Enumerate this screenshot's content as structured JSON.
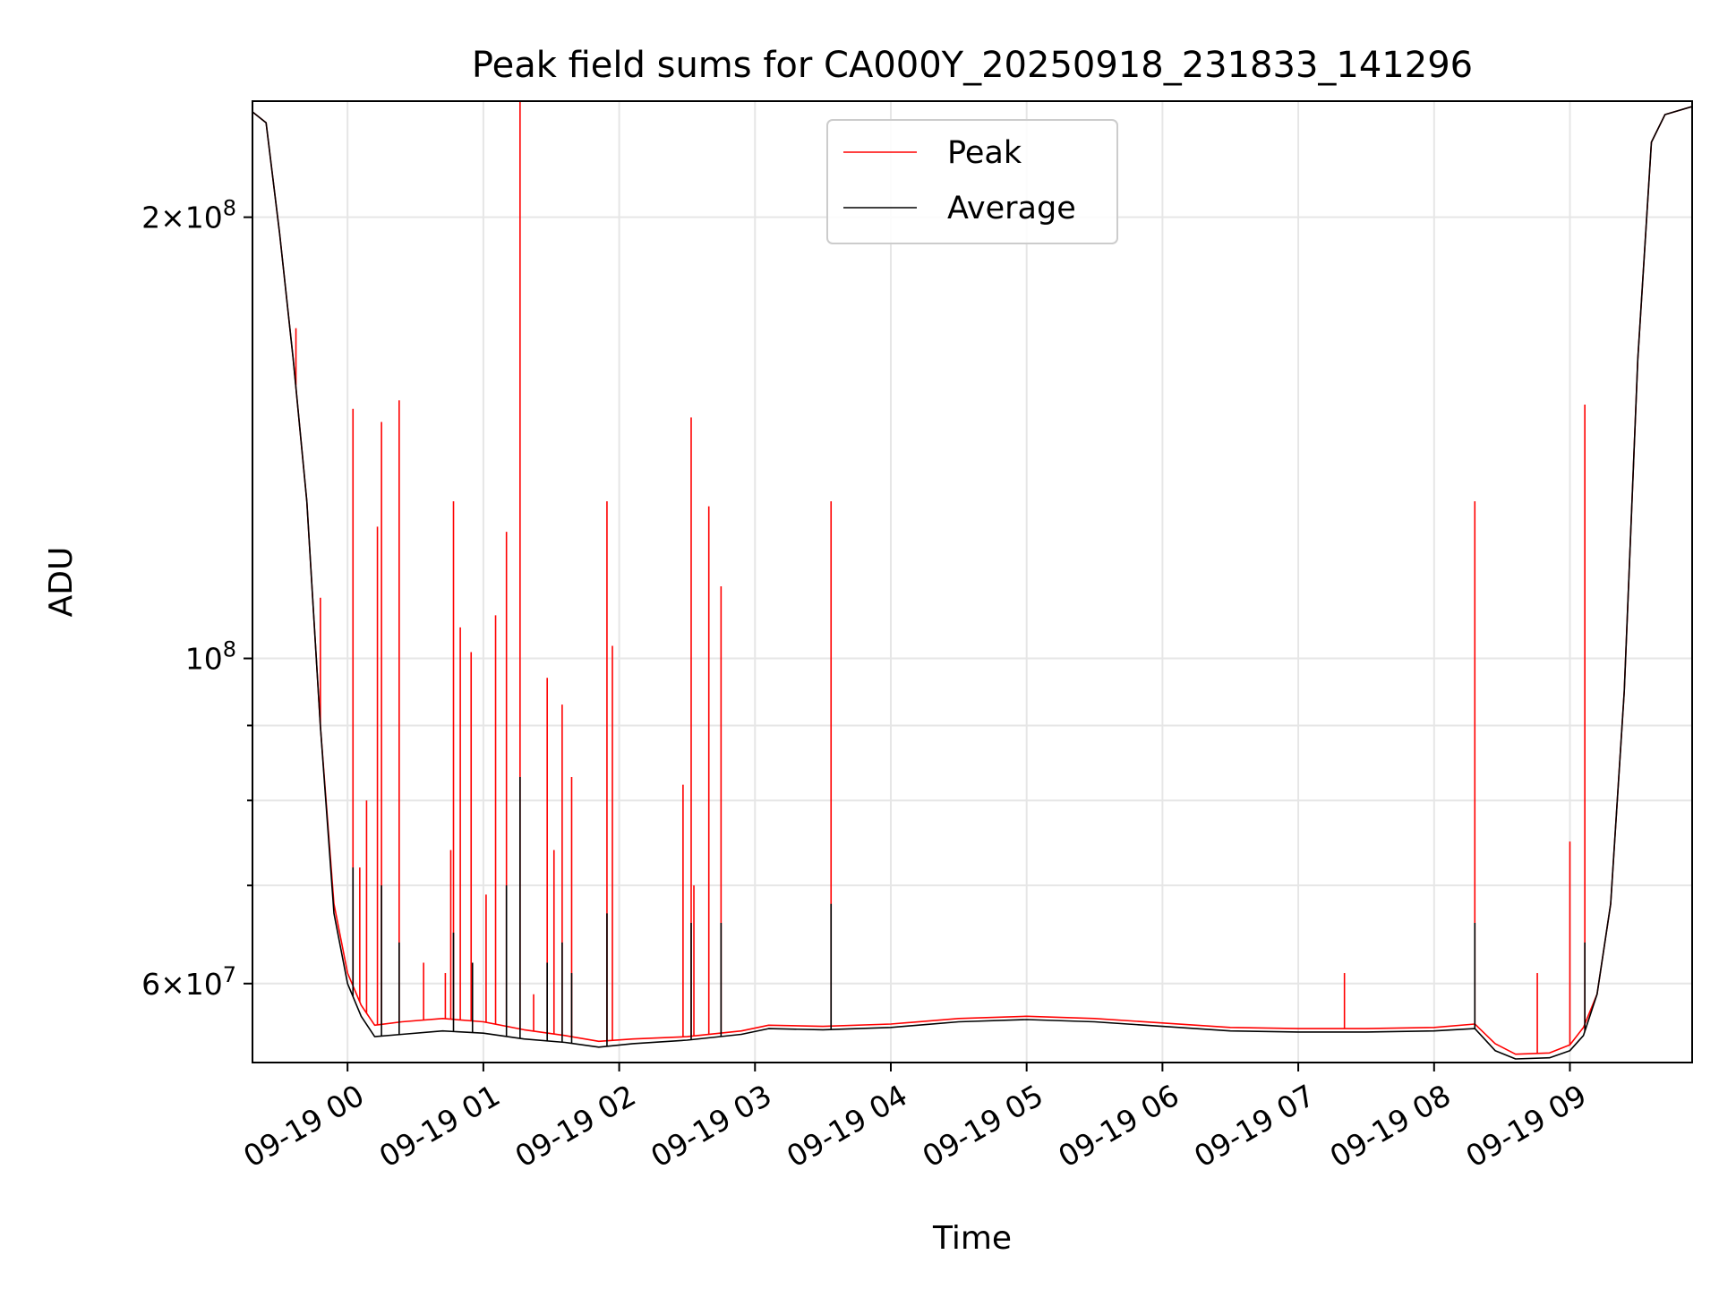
{
  "chart_data": {
    "type": "line",
    "title": "Peak field sums for CA000Y_20250918_231833_141296",
    "xlabel": "Time",
    "ylabel": "ADU",
    "y_scale": "log",
    "grid": true,
    "legend_position": "top-center",
    "xlim_hours": [
      -0.7,
      9.9
    ],
    "ylim": [
      53000000,
      240000000
    ],
    "x_unit": "hours since 2025-09-19 00:00",
    "x_ticks": [
      {
        "value": 0,
        "label": "09-19 00"
      },
      {
        "value": 1,
        "label": "09-19 01"
      },
      {
        "value": 2,
        "label": "09-19 02"
      },
      {
        "value": 3,
        "label": "09-19 03"
      },
      {
        "value": 4,
        "label": "09-19 04"
      },
      {
        "value": 5,
        "label": "09-19 05"
      },
      {
        "value": 6,
        "label": "09-19 06"
      },
      {
        "value": 7,
        "label": "09-19 07"
      },
      {
        "value": 8,
        "label": "09-19 08"
      },
      {
        "value": 9,
        "label": "09-19 09"
      }
    ],
    "y_major_ticks": [
      {
        "value": 60000000,
        "mantissa": "6",
        "exponent": "7"
      },
      {
        "value": 100000000,
        "mantissa": "",
        "exponent": "8"
      },
      {
        "value": 200000000,
        "mantissa": "2",
        "exponent": "8"
      }
    ],
    "y_minor_ticks": [
      70000000,
      80000000,
      90000000
    ],
    "series": [
      {
        "name": "Peak",
        "color": "#ff0000",
        "baseline": [
          [
            -0.7,
            236000000
          ],
          [
            -0.6,
            232000000
          ],
          [
            -0.5,
            195000000
          ],
          [
            -0.4,
            160000000
          ],
          [
            -0.3,
            128000000
          ],
          [
            -0.2,
            90000000
          ],
          [
            -0.1,
            68000000
          ],
          [
            0.0,
            61000000
          ],
          [
            0.1,
            58000000
          ],
          [
            0.2,
            56200000
          ],
          [
            0.4,
            56500000
          ],
          [
            0.7,
            56800000
          ],
          [
            1.0,
            56500000
          ],
          [
            1.3,
            55800000
          ],
          [
            1.6,
            55300000
          ],
          [
            1.85,
            54800000
          ],
          [
            2.1,
            55000000
          ],
          [
            2.5,
            55200000
          ],
          [
            2.9,
            55700000
          ],
          [
            3.1,
            56200000
          ],
          [
            3.5,
            56100000
          ],
          [
            4.0,
            56300000
          ],
          [
            4.5,
            56800000
          ],
          [
            5.0,
            57000000
          ],
          [
            5.5,
            56800000
          ],
          [
            6.0,
            56400000
          ],
          [
            6.5,
            56000000
          ],
          [
            7.0,
            55900000
          ],
          [
            7.5,
            55900000
          ],
          [
            8.0,
            56000000
          ],
          [
            8.3,
            56300000
          ],
          [
            8.45,
            54600000
          ],
          [
            8.6,
            53700000
          ],
          [
            8.85,
            53800000
          ],
          [
            9.0,
            54500000
          ],
          [
            9.1,
            56000000
          ],
          [
            9.2,
            59000000
          ],
          [
            9.3,
            68000000
          ],
          [
            9.4,
            95000000
          ],
          [
            9.5,
            160000000
          ],
          [
            9.6,
            225000000
          ],
          [
            9.7,
            235000000
          ],
          [
            9.9,
            238000000
          ]
        ],
        "spikes": [
          [
            -0.38,
            168000000
          ],
          [
            -0.2,
            110000000
          ],
          [
            0.04,
            148000000
          ],
          [
            0.09,
            72000000
          ],
          [
            0.14,
            80000000
          ],
          [
            0.22,
            123000000
          ],
          [
            0.25,
            145000000
          ],
          [
            0.38,
            150000000
          ],
          [
            0.56,
            62000000
          ],
          [
            0.72,
            61000000
          ],
          [
            0.76,
            74000000
          ],
          [
            0.78,
            128000000
          ],
          [
            0.83,
            105000000
          ],
          [
            0.91,
            101000000
          ],
          [
            1.02,
            69000000
          ],
          [
            1.09,
            107000000
          ],
          [
            1.17,
            122000000
          ],
          [
            1.27,
            240000000
          ],
          [
            1.37,
            59000000
          ],
          [
            1.47,
            97000000
          ],
          [
            1.52,
            74000000
          ],
          [
            1.58,
            93000000
          ],
          [
            1.65,
            83000000
          ],
          [
            1.91,
            128000000
          ],
          [
            1.95,
            102000000
          ],
          [
            2.47,
            82000000
          ],
          [
            2.53,
            146000000
          ],
          [
            2.55,
            70000000
          ],
          [
            2.66,
            127000000
          ],
          [
            2.75,
            112000000
          ],
          [
            3.56,
            128000000
          ],
          [
            7.34,
            61000000
          ],
          [
            8.3,
            128000000
          ],
          [
            8.76,
            61000000
          ],
          [
            9.0,
            75000000
          ],
          [
            9.11,
            149000000
          ]
        ]
      },
      {
        "name": "Average",
        "color": "#000000",
        "baseline": [
          [
            -0.7,
            236000000
          ],
          [
            -0.6,
            232000000
          ],
          [
            -0.5,
            195000000
          ],
          [
            -0.4,
            160000000
          ],
          [
            -0.3,
            128000000
          ],
          [
            -0.2,
            90000000
          ],
          [
            -0.1,
            67000000
          ],
          [
            0.0,
            60000000
          ],
          [
            0.1,
            57000000
          ],
          [
            0.2,
            55200000
          ],
          [
            0.4,
            55400000
          ],
          [
            0.7,
            55700000
          ],
          [
            1.0,
            55500000
          ],
          [
            1.3,
            55000000
          ],
          [
            1.6,
            54700000
          ],
          [
            1.85,
            54300000
          ],
          [
            2.1,
            54600000
          ],
          [
            2.5,
            54900000
          ],
          [
            2.9,
            55400000
          ],
          [
            3.1,
            55900000
          ],
          [
            3.5,
            55800000
          ],
          [
            4.0,
            56000000
          ],
          [
            4.5,
            56500000
          ],
          [
            5.0,
            56700000
          ],
          [
            5.5,
            56500000
          ],
          [
            6.0,
            56100000
          ],
          [
            6.5,
            55700000
          ],
          [
            7.0,
            55600000
          ],
          [
            7.5,
            55600000
          ],
          [
            8.0,
            55700000
          ],
          [
            8.3,
            55900000
          ],
          [
            8.45,
            54000000
          ],
          [
            8.6,
            53300000
          ],
          [
            8.85,
            53400000
          ],
          [
            9.0,
            54000000
          ],
          [
            9.1,
            55300000
          ],
          [
            9.2,
            59000000
          ],
          [
            9.3,
            68000000
          ],
          [
            9.4,
            95000000
          ],
          [
            9.5,
            160000000
          ],
          [
            9.6,
            225000000
          ],
          [
            9.7,
            235000000
          ],
          [
            9.9,
            238000000
          ]
        ],
        "spikes": [
          [
            0.04,
            72000000
          ],
          [
            0.25,
            70000000
          ],
          [
            0.38,
            64000000
          ],
          [
            0.78,
            65000000
          ],
          [
            0.92,
            62000000
          ],
          [
            1.17,
            70000000
          ],
          [
            1.27,
            83000000
          ],
          [
            1.47,
            62000000
          ],
          [
            1.58,
            64000000
          ],
          [
            1.65,
            61000000
          ],
          [
            1.91,
            67000000
          ],
          [
            2.53,
            66000000
          ],
          [
            2.75,
            66000000
          ],
          [
            3.56,
            68000000
          ],
          [
            8.3,
            66000000
          ],
          [
            9.11,
            64000000
          ]
        ]
      }
    ]
  }
}
